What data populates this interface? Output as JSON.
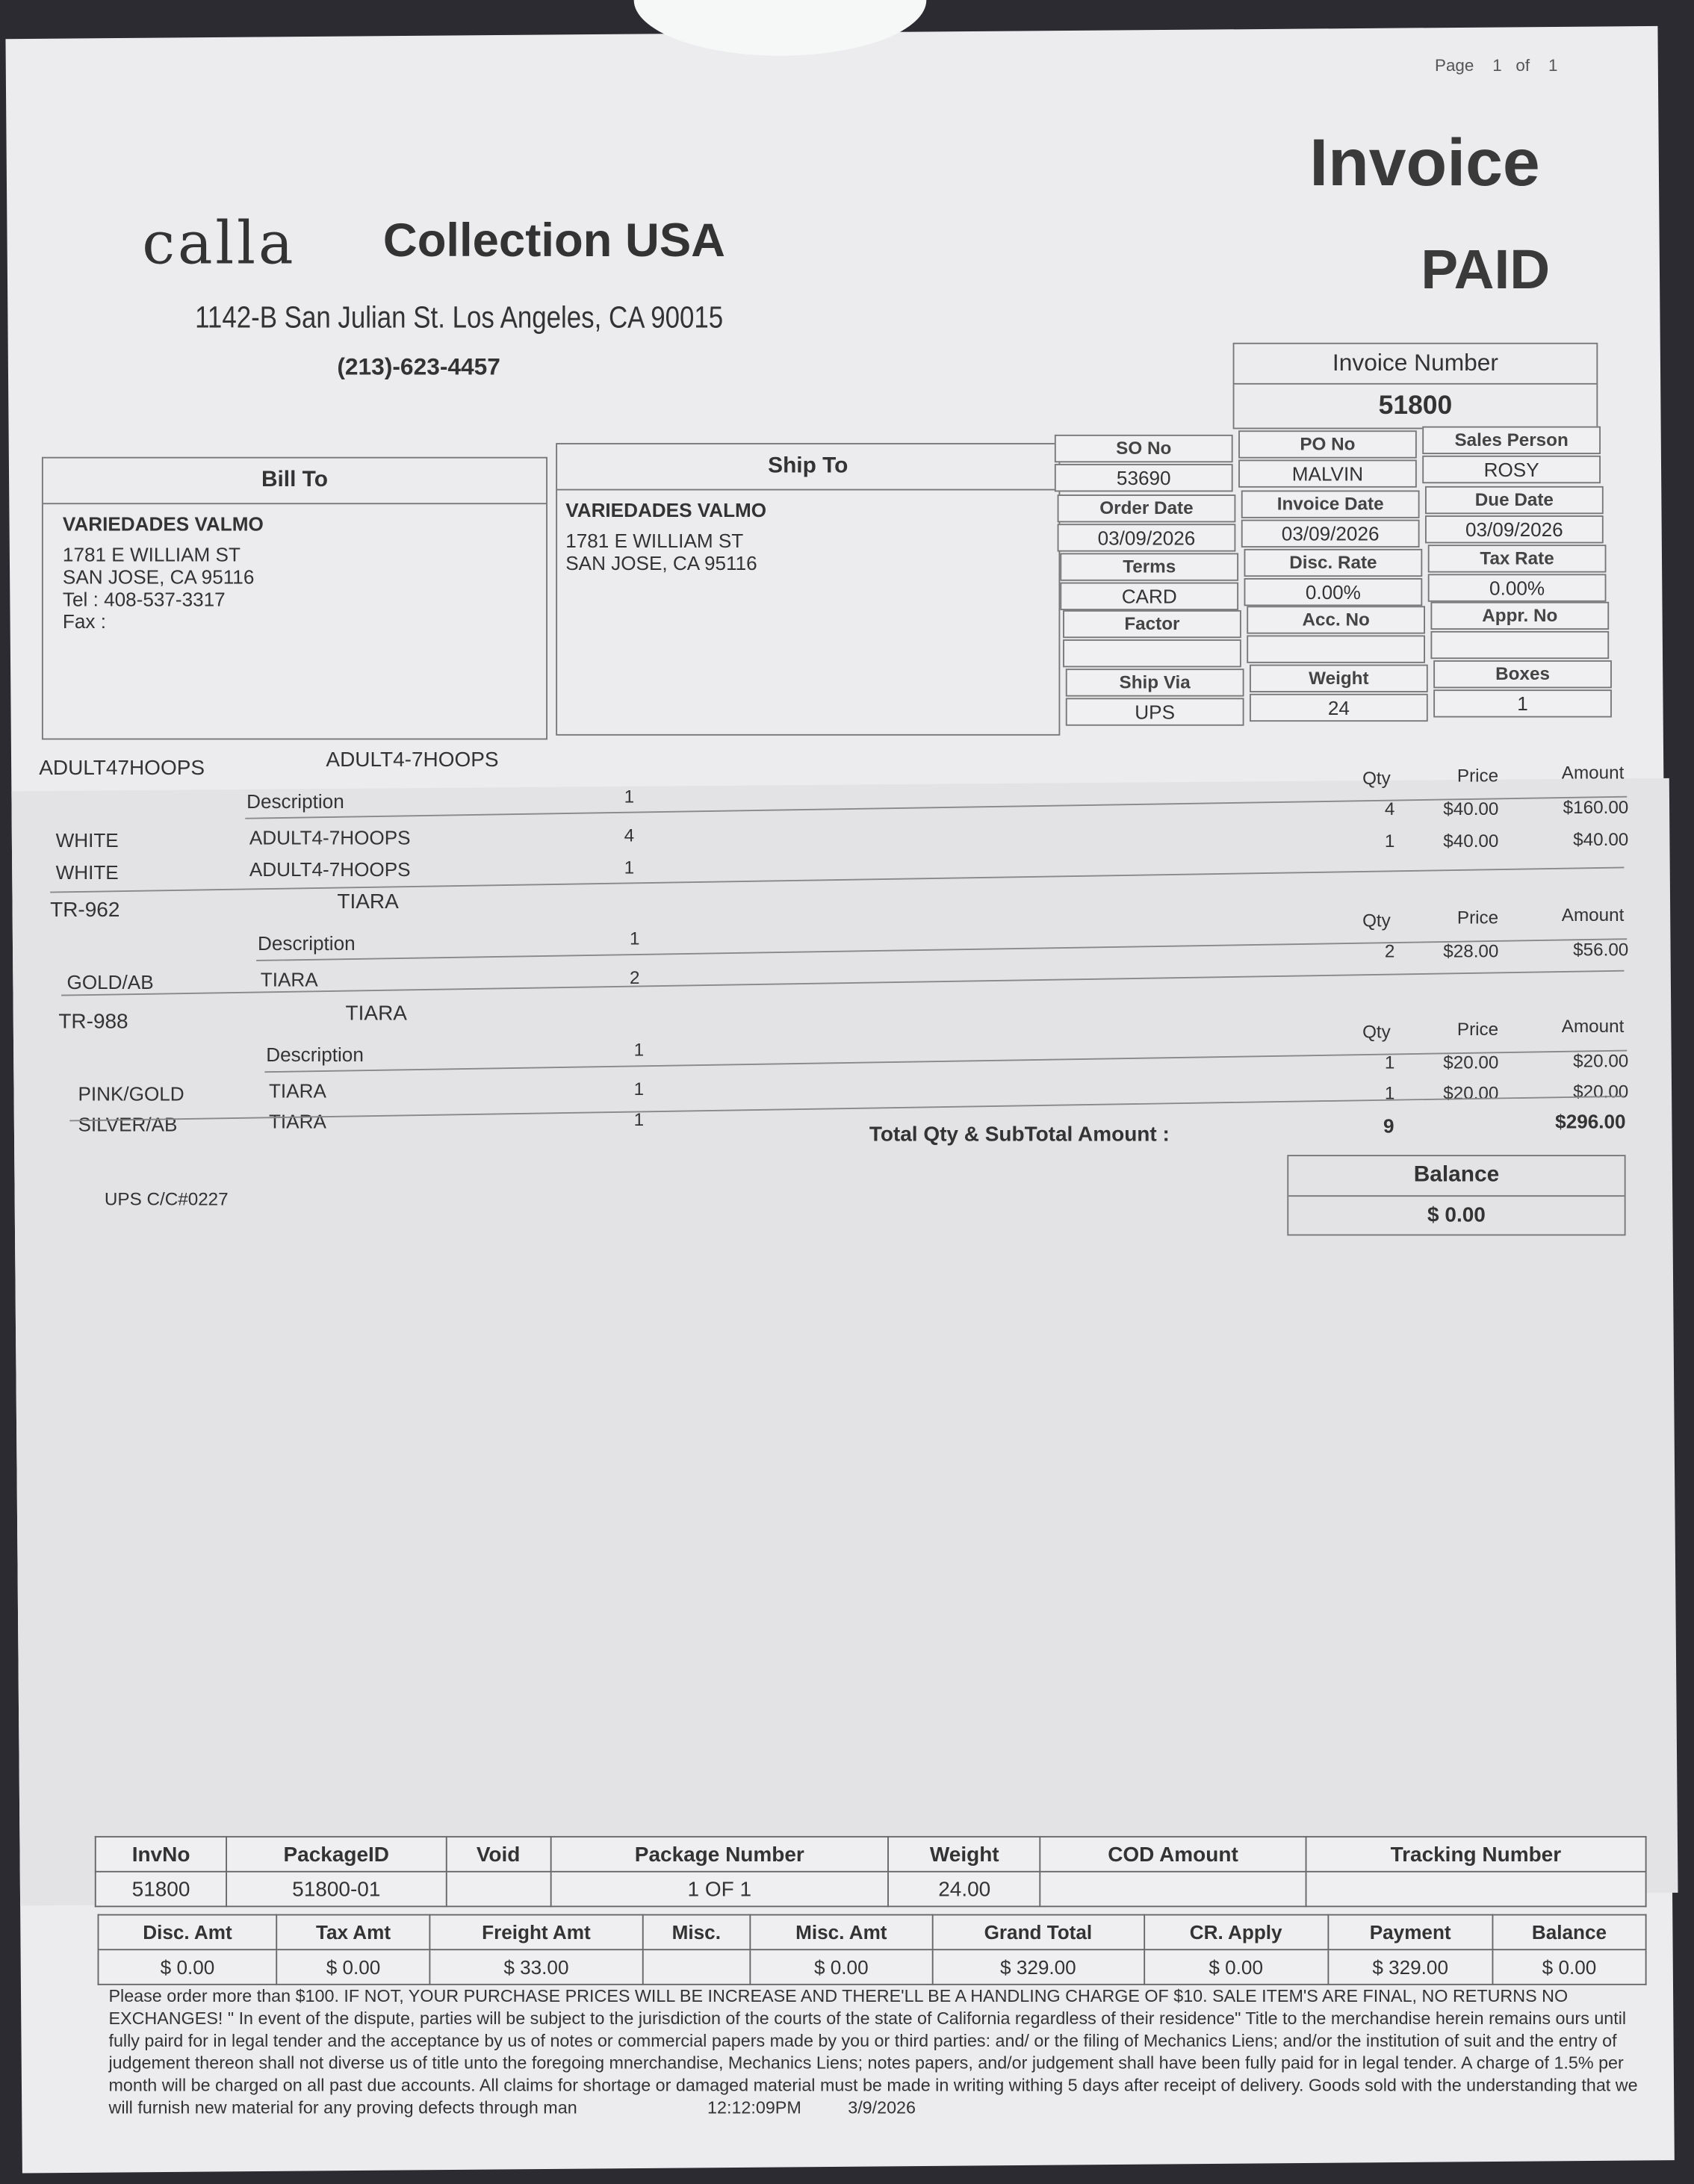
{
  "page_indicator": {
    "label": "Page",
    "current": "1",
    "of_label": "of",
    "total": "1"
  },
  "document": {
    "title": "Invoice",
    "status": "PAID"
  },
  "company": {
    "logo_text": "calla",
    "name": "Collection USA",
    "address": "1142-B San Julian St. Los Angeles, CA 90015",
    "phone": "(213)-623-4457"
  },
  "invoice_number": {
    "label": "Invoice Number",
    "value": "51800"
  },
  "bill_to": {
    "heading": "Bill To",
    "name": "VARIEDADES VALMO",
    "address": "1781 E WILLIAM ST",
    "city": "SAN JOSE, CA 95116",
    "tel": "Tel : 408-537-3317",
    "fax": "Fax :"
  },
  "ship_to": {
    "heading": "Ship To",
    "name": "VARIEDADES VALMO",
    "address": "1781 E WILLIAM ST",
    "city": "SAN JOSE, CA 95116"
  },
  "info": {
    "so_no": {
      "label": "SO No",
      "value": "53690"
    },
    "po_no": {
      "label": "PO No",
      "value": "MALVIN"
    },
    "sales_person": {
      "label": "Sales Person",
      "value": "ROSY"
    },
    "order_date": {
      "label": "Order Date",
      "value": "03/09/2026"
    },
    "invoice_date": {
      "label": "Invoice Date",
      "value": "03/09/2026"
    },
    "due_date": {
      "label": "Due Date",
      "value": "03/09/2026"
    },
    "terms": {
      "label": "Terms",
      "value": "CARD"
    },
    "disc_rate": {
      "label": "Disc. Rate",
      "value": "0.00%"
    },
    "tax_rate": {
      "label": "Tax Rate",
      "value": "0.00%"
    },
    "factor": {
      "label": "Factor",
      "value": ""
    },
    "acc_no": {
      "label": "Acc. No",
      "value": ""
    },
    "appr_no": {
      "label": "Appr. No",
      "value": ""
    },
    "ship_via": {
      "label": "Ship Via",
      "value": "UPS"
    },
    "weight": {
      "label": "Weight",
      "value": "24"
    },
    "boxes": {
      "label": "Boxes",
      "value": "1"
    }
  },
  "items": {
    "headers": {
      "description": "Description",
      "qty": "Qty",
      "price": "Price",
      "amount": "Amount"
    },
    "groups": [
      {
        "style": "ADULT47HOOPS",
        "name": "ADULT4-7HOOPS",
        "pack": "1",
        "lines": [
          {
            "color": "WHITE",
            "desc": "ADULT4-7HOOPS",
            "pack": "4",
            "qty": "4",
            "price": "$40.00",
            "amount": "$160.00"
          },
          {
            "color": "WHITE",
            "desc": "ADULT4-7HOOPS",
            "pack": "1",
            "qty": "1",
            "price": "$40.00",
            "amount": "$40.00"
          }
        ]
      },
      {
        "style": "TR-962",
        "name": "TIARA",
        "pack": "1",
        "lines": [
          {
            "color": "GOLD/AB",
            "desc": "TIARA",
            "pack": "2",
            "qty": "2",
            "price": "$28.00",
            "amount": "$56.00"
          }
        ]
      },
      {
        "style": "TR-988",
        "name": "TIARA",
        "pack": "1",
        "lines": [
          {
            "color": "PINK/GOLD",
            "desc": "TIARA",
            "pack": "1",
            "qty": "1",
            "price": "$20.00",
            "amount": "$20.00"
          },
          {
            "color": "SILVER/AB",
            "desc": "TIARA",
            "pack": "1",
            "qty": "1",
            "price": "$20.00",
            "amount": "$20.00"
          }
        ]
      }
    ],
    "total_label": "Total Qty & SubTotal Amount :",
    "total_qty": "9",
    "subtotal": "$296.00"
  },
  "balance": {
    "label": "Balance",
    "value": "$ 0.00"
  },
  "shipping_note": "UPS C/C#0227",
  "package_table": {
    "headers": [
      "InvNo",
      "PackageID",
      "Void",
      "Package Number",
      "Weight",
      "COD Amount",
      "Tracking Number"
    ],
    "row": [
      "51800",
      "51800-01",
      "",
      "1 OF 1",
      "24.00",
      "",
      ""
    ]
  },
  "summary_table": {
    "headers": [
      "Disc. Amt",
      "Tax Amt",
      "Freight Amt",
      "Misc.",
      "Misc. Amt",
      "Grand Total",
      "CR. Apply",
      "Payment",
      "Balance"
    ],
    "row": [
      "$ 0.00",
      "$ 0.00",
      "$ 33.00",
      "",
      "$ 0.00",
      "$ 329.00",
      "$ 0.00",
      "$ 329.00",
      "$ 0.00"
    ]
  },
  "disclaimer": "Please order more than $100. IF NOT, YOUR PURCHASE PRICES WILL BE INCREASE AND THERE'LL BE A HANDLING CHARGE OF $10. SALE ITEM'S ARE FINAL, NO RETURNS NO EXCHANGES! \" In event of the dispute, parties will be subject to the jurisdiction of the courts of the state of California regardless of their residence\" Title to the merchandise herein remains ours until fully paird for in legal tender and the acceptance by us of notes or commercial papers made by you or third parties: and/ or the filing of Mechanics Liens; and/or the institution of suit and the entry of judgement thereon shall not diverse us of title unto the foregoing mnerchandise, Mechanics Liens; notes papers, and/or judgement shall have been fully paid for in legal tender. A charge of 1.5% per month will be charged on all past due accounts. All claims for shortage or damaged material must be made in writing withing 5 days after receipt of delivery. Goods sold with the understanding that we will furnish new material for any proving defects through man",
  "print_time": "12:12:09PM",
  "print_date": "3/9/2026"
}
